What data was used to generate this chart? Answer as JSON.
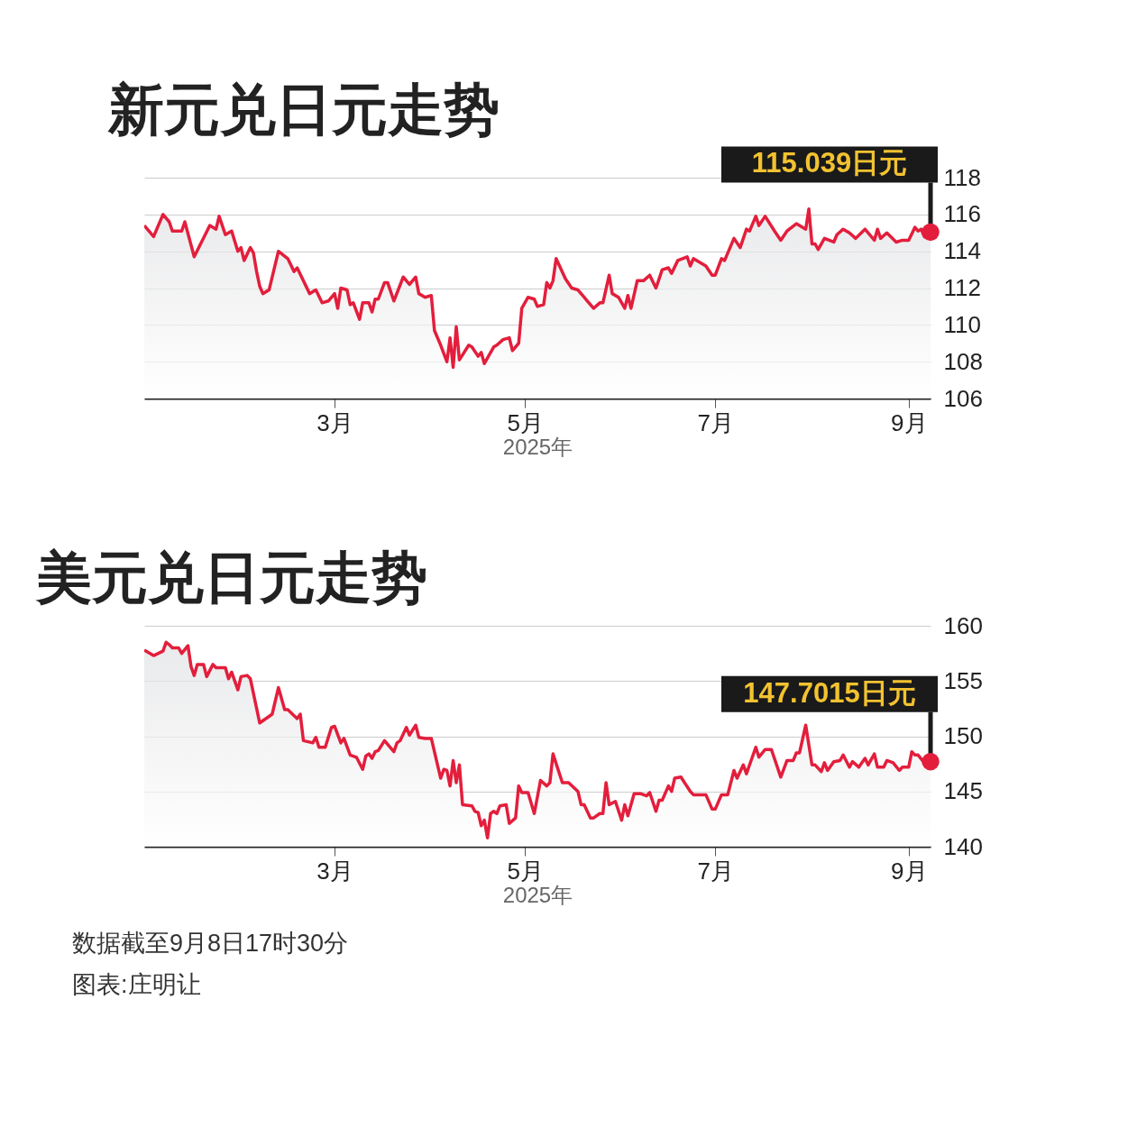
{
  "chart_data": [
    {
      "type": "area",
      "title": "新元兑日元走势",
      "xlabel": "2025年",
      "x": [
        "2024-12-30",
        "2025-01-02",
        "2025-01-05",
        "2025-01-07",
        "2025-01-08",
        "2025-01-11",
        "2025-01-12",
        "2025-01-15",
        "2025-01-20",
        "2025-01-22",
        "2025-01-23",
        "2025-01-25",
        "2025-01-27",
        "2025-01-29",
        "2025-01-30",
        "2025-01-31",
        "2025-02-02",
        "2025-02-03",
        "2025-02-04",
        "2025-02-05",
        "2025-02-06",
        "2025-02-08",
        "2025-02-11",
        "2025-02-14",
        "2025-02-16",
        "2025-02-17",
        "2025-02-21",
        "2025-02-23",
        "2025-02-25",
        "2025-02-27",
        "2025-03-01",
        "2025-03-02",
        "2025-03-03",
        "2025-03-05",
        "2025-03-06",
        "2025-03-07",
        "2025-03-09",
        "2025-03-10",
        "2025-03-12",
        "2025-03-13",
        "2025-03-14",
        "2025-03-15",
        "2025-03-17",
        "2025-03-18",
        "2025-03-20",
        "2025-03-23",
        "2025-03-25",
        "2025-03-27",
        "2025-03-28",
        "2025-03-30",
        "2025-04-01",
        "2025-04-02",
        "2025-04-04",
        "2025-04-06",
        "2025-04-07",
        "2025-04-08",
        "2025-04-09",
        "2025-04-10",
        "2025-04-13",
        "2025-04-14",
        "2025-04-16",
        "2025-04-17",
        "2025-04-18",
        "2025-04-21",
        "2025-04-22",
        "2025-04-24",
        "2025-04-26",
        "2025-04-27",
        "2025-04-29",
        "2025-04-30",
        "2025-05-02",
        "2025-05-04",
        "2025-05-05",
        "2025-05-07",
        "2025-05-08",
        "2025-05-09",
        "2025-05-10",
        "2025-05-11",
        "2025-05-14",
        "2025-05-16",
        "2025-05-18",
        "2025-05-20",
        "2025-05-21",
        "2025-05-23",
        "2025-05-25",
        "2025-05-26",
        "2025-05-28",
        "2025-05-29",
        "2025-05-31",
        "2025-06-02",
        "2025-06-03",
        "2025-06-04",
        "2025-06-06",
        "2025-06-08",
        "2025-06-10",
        "2025-06-12",
        "2025-06-14",
        "2025-06-16",
        "2025-06-17",
        "2025-06-19",
        "2025-06-22",
        "2025-06-23",
        "2025-06-24",
        "2025-06-28",
        "2025-06-30",
        "2025-07-01",
        "2025-07-03",
        "2025-07-04",
        "2025-07-07",
        "2025-07-09",
        "2025-07-11",
        "2025-07-12",
        "2025-07-14",
        "2025-07-15",
        "2025-07-17",
        "2025-07-20",
        "2025-07-22",
        "2025-07-24",
        "2025-07-27",
        "2025-07-30",
        "2025-07-31",
        "2025-08-01",
        "2025-08-02",
        "2025-08-03",
        "2025-08-05",
        "2025-08-08",
        "2025-08-09",
        "2025-08-11",
        "2025-08-13",
        "2025-08-15",
        "2025-08-18",
        "2025-08-21",
        "2025-08-22",
        "2025-08-23",
        "2025-08-25",
        "2025-08-28",
        "2025-08-30",
        "2025-09-01",
        "2025-09-03",
        "2025-09-04",
        "2025-09-05",
        "2025-09-06",
        "2025-09-08"
      ],
      "series": [
        {
          "color": "#e31e3c",
          "values": [
            115.4,
            114.8,
            116.0,
            115.6,
            115.1,
            115.1,
            115.6,
            113.7,
            115.4,
            115.2,
            115.9,
            114.9,
            115.1,
            114.0,
            114.2,
            113.5,
            114.2,
            113.9,
            112.9,
            112.1,
            111.7,
            111.9,
            114.0,
            113.6,
            112.9,
            113.1,
            111.7,
            111.9,
            111.2,
            111.3,
            111.7,
            110.9,
            112.0,
            111.9,
            111.1,
            111.2,
            110.3,
            111.2,
            111.2,
            110.7,
            111.4,
            111.4,
            112.3,
            112.3,
            111.3,
            112.6,
            112.2,
            112.6,
            111.7,
            111.5,
            111.6,
            109.7,
            108.9,
            108.0,
            109.3,
            107.7,
            109.9,
            108.1,
            108.9,
            108.8,
            108.3,
            108.5,
            107.9,
            108.8,
            108.9,
            109.2,
            109.3,
            108.6,
            109.0,
            110.9,
            111.5,
            111.4,
            111.0,
            111.1,
            112.3,
            112.0,
            112.4,
            113.6,
            112.5,
            112.0,
            111.9,
            111.5,
            111.3,
            110.9,
            111.2,
            111.2,
            112.7,
            111.7,
            111.5,
            110.9,
            111.6,
            110.9,
            112.4,
            112.4,
            112.7,
            112.0,
            113.0,
            113.1,
            112.8,
            113.5,
            113.7,
            113.2,
            113.6,
            113.2,
            112.7,
            112.7,
            113.6,
            113.5,
            114.7,
            114.2,
            115.2,
            115.1,
            115.9,
            115.4,
            115.9,
            115.1,
            114.6,
            115.1,
            115.5,
            115.2,
            116.3,
            114.4,
            114.4,
            114.1,
            114.7,
            114.5,
            114.9,
            115.2,
            115.0,
            114.7,
            115.2,
            114.6,
            115.2,
            114.7,
            115.0,
            114.5,
            114.6,
            114.6,
            115.3,
            115.1,
            115.2,
            114.8,
            115.0
          ]
        }
      ],
      "xlim": [
        "2024-12-30",
        "2025-09-08"
      ],
      "xticks": [
        {
          "value": "2025-03-01",
          "label": "3月"
        },
        {
          "value": "2025-05-01",
          "label": "5月"
        },
        {
          "value": "2025-07-01",
          "label": "7月"
        },
        {
          "value": "2025-09-01",
          "label": "9月"
        }
      ],
      "ylim": [
        106,
        118
      ],
      "yticks": [
        106,
        108,
        110,
        112,
        114,
        116,
        118
      ],
      "grid": "y",
      "annotations": [
        {
          "text": "115.039日元",
          "x": "2025-09-08",
          "y": 115.039
        }
      ]
    },
    {
      "type": "area",
      "title": "美元兑日元走势",
      "xlabel": "2025年",
      "x": [
        "2024-12-30",
        "2025-01-02",
        "2025-01-05",
        "2025-01-06",
        "2025-01-07",
        "2025-01-08",
        "2025-01-10",
        "2025-01-11",
        "2025-01-13",
        "2025-01-14",
        "2025-01-15",
        "2025-01-16",
        "2025-01-18",
        "2025-01-19",
        "2025-01-21",
        "2025-01-22",
        "2025-01-25",
        "2025-01-26",
        "2025-01-27",
        "2025-01-29",
        "2025-01-30",
        "2025-02-01",
        "2025-02-02",
        "2025-02-05",
        "2025-02-08",
        "2025-02-09",
        "2025-02-11",
        "2025-02-13",
        "2025-02-14",
        "2025-02-17",
        "2025-02-18",
        "2025-02-19",
        "2025-02-22",
        "2025-02-23",
        "2025-02-24",
        "2025-02-26",
        "2025-02-28",
        "2025-03-01",
        "2025-03-03",
        "2025-03-04",
        "2025-03-06",
        "2025-03-08",
        "2025-03-10",
        "2025-03-11",
        "2025-03-12",
        "2025-03-13",
        "2025-03-14",
        "2025-03-15",
        "2025-03-17",
        "2025-03-20",
        "2025-03-21",
        "2025-03-22",
        "2025-03-24",
        "2025-03-25",
        "2025-03-27",
        "2025-03-28",
        "2025-03-30",
        "2025-04-01",
        "2025-04-04",
        "2025-04-05",
        "2025-04-06",
        "2025-04-07",
        "2025-04-08",
        "2025-04-09",
        "2025-04-10",
        "2025-04-11",
        "2025-04-14",
        "2025-04-15",
        "2025-04-16",
        "2025-04-17",
        "2025-04-18",
        "2025-04-19",
        "2025-04-20",
        "2025-04-21",
        "2025-04-22",
        "2025-04-23",
        "2025-04-25",
        "2025-04-26",
        "2025-04-28",
        "2025-04-29",
        "2025-04-30",
        "2025-05-02",
        "2025-05-04",
        "2025-05-06",
        "2025-05-08",
        "2025-05-09",
        "2025-05-10",
        "2025-05-13",
        "2025-05-15",
        "2025-05-18",
        "2025-05-19",
        "2025-05-20",
        "2025-05-22",
        "2025-05-23",
        "2025-05-25",
        "2025-05-26",
        "2025-05-27",
        "2025-05-28",
        "2025-05-30",
        "2025-06-01",
        "2025-06-02",
        "2025-06-03",
        "2025-06-05",
        "2025-06-07",
        "2025-06-09",
        "2025-06-10",
        "2025-06-12",
        "2025-06-13",
        "2025-06-14",
        "2025-06-16",
        "2025-06-17",
        "2025-06-18",
        "2025-06-20",
        "2025-06-23",
        "2025-06-24",
        "2025-06-28",
        "2025-06-30",
        "2025-07-01",
        "2025-07-03",
        "2025-07-05",
        "2025-07-07",
        "2025-07-08",
        "2025-07-10",
        "2025-07-11",
        "2025-07-14",
        "2025-07-15",
        "2025-07-17",
        "2025-07-19",
        "2025-07-22",
        "2025-07-24",
        "2025-07-26",
        "2025-07-27",
        "2025-07-28",
        "2025-07-30",
        "2025-08-01",
        "2025-08-02",
        "2025-08-04",
        "2025-08-05",
        "2025-08-06",
        "2025-08-08",
        "2025-08-10",
        "2025-08-11",
        "2025-08-13",
        "2025-08-14",
        "2025-08-16",
        "2025-08-18",
        "2025-08-19",
        "2025-08-21",
        "2025-08-22",
        "2025-08-24",
        "2025-08-25",
        "2025-08-27",
        "2025-08-29",
        "2025-08-30",
        "2025-09-01",
        "2025-09-02",
        "2025-09-03",
        "2025-09-04",
        "2025-09-06",
        "2025-09-08"
      ],
      "series": [
        {
          "color": "#e31e3c",
          "values": [
            157.8,
            157.3,
            157.7,
            158.5,
            158.3,
            158.0,
            158.0,
            157.5,
            158.2,
            156.3,
            155.5,
            156.5,
            156.5,
            155.4,
            156.5,
            156.2,
            156.2,
            155.2,
            155.8,
            154.2,
            155.4,
            155.5,
            155.2,
            151.2,
            151.8,
            152.0,
            154.4,
            152.4,
            152.4,
            151.6,
            152.0,
            149.6,
            149.4,
            149.9,
            149.0,
            149.0,
            150.8,
            150.9,
            149.4,
            149.8,
            148.3,
            148.1,
            147.0,
            148.2,
            148.4,
            148.0,
            148.6,
            148.7,
            149.6,
            148.6,
            149.4,
            149.6,
            150.8,
            150.1,
            151.0,
            149.9,
            149.8,
            149.8,
            146.2,
            147.0,
            146.9,
            145.5,
            147.8,
            145.8,
            147.4,
            143.8,
            143.7,
            143.2,
            143.1,
            141.9,
            142.4,
            140.8,
            143.0,
            143.2,
            143.0,
            143.7,
            143.8,
            142.1,
            142.6,
            145.5,
            144.9,
            144.9,
            143.0,
            146.0,
            145.5,
            145.8,
            148.4,
            145.8,
            145.8,
            145.0,
            143.8,
            143.8,
            142.6,
            142.6,
            143.0,
            143.0,
            145.8,
            143.8,
            144.1,
            142.4,
            143.8,
            142.8,
            144.8,
            144.8,
            144.6,
            144.9,
            143.2,
            144.2,
            144.2,
            145.5,
            145.0,
            146.2,
            146.3,
            145.0,
            144.7,
            144.7,
            143.4,
            143.4,
            144.7,
            144.7,
            146.9,
            146.2,
            147.4,
            146.6,
            149.0,
            148.1,
            148.8,
            148.8,
            146.3,
            147.8,
            147.8,
            148.5,
            148.5,
            151.0,
            147.4,
            147.4,
            146.8,
            147.6,
            146.9,
            147.7,
            147.8,
            148.3,
            147.2,
            147.7,
            147.2,
            148.0,
            147.4,
            148.4,
            147.2,
            147.2,
            147.8,
            147.6,
            146.9,
            147.2,
            147.2,
            148.6,
            148.3,
            148.3,
            147.6,
            147.7
          ]
        }
      ],
      "xlim": [
        "2024-12-30",
        "2025-09-08"
      ],
      "xticks": [
        {
          "value": "2025-03-01",
          "label": "3月"
        },
        {
          "value": "2025-05-01",
          "label": "5月"
        },
        {
          "value": "2025-07-01",
          "label": "7月"
        },
        {
          "value": "2025-09-01",
          "label": "9月"
        }
      ],
      "ylim": [
        140,
        160
      ],
      "yticks": [
        140,
        145,
        150,
        155,
        160
      ],
      "grid": "y",
      "annotations": [
        {
          "text": "147.7015日元",
          "x": "2025-09-08",
          "y": 147.7015
        },
        "数据截至9月8日17时30分",
        "图表:庄明让"
      ]
    }
  ]
}
